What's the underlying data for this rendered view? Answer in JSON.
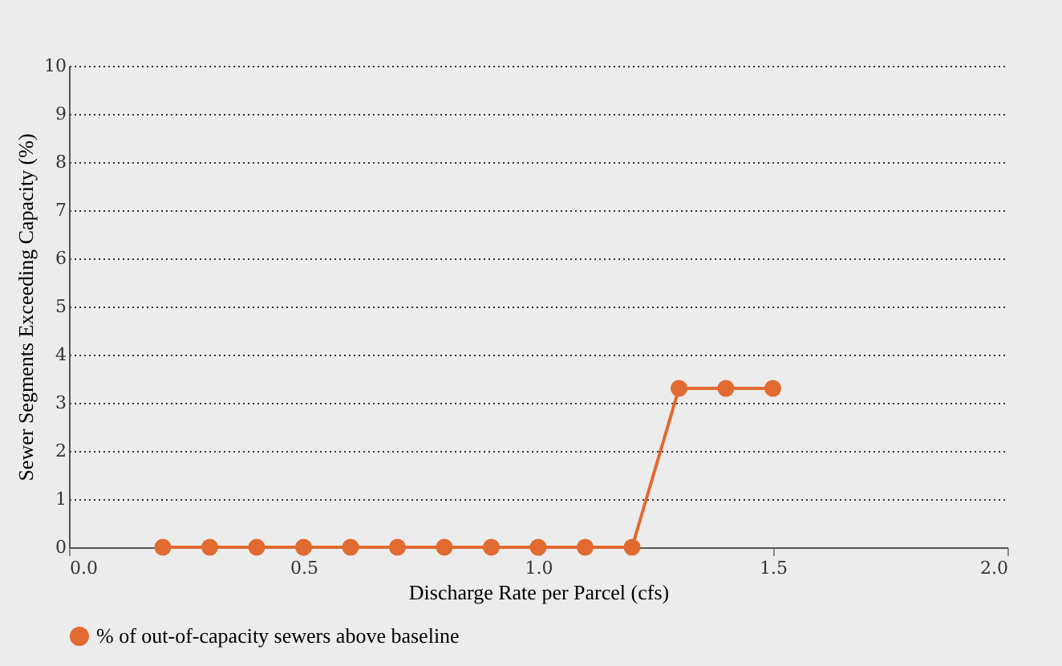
{
  "chart_data": {
    "type": "line",
    "xlabel": "Discharge Rate per Parcel (cfs)",
    "ylabel": "Sewer Segments Exceeding Capacity (%)",
    "x": [
      0.2,
      0.3,
      0.4,
      0.5,
      0.6,
      0.7,
      0.8,
      0.9,
      1.0,
      1.1,
      1.2,
      1.3,
      1.4,
      1.5
    ],
    "series": [
      {
        "name": "% of out-of-capacity sewers  above baseline",
        "color": "#e06a30",
        "values": [
          0,
          0,
          0,
          0,
          0,
          0,
          0,
          0,
          0,
          0,
          0,
          3.3,
          3.3,
          3.3
        ]
      }
    ],
    "xlim": [
      0,
      2
    ],
    "xticks": [
      {
        "value": 0,
        "label": "0.0"
      },
      {
        "value": 0.5,
        "label": "0.5"
      },
      {
        "value": 1,
        "label": "1.0"
      },
      {
        "value": 1.5,
        "label": "1.5"
      },
      {
        "value": 2,
        "label": "2.0"
      }
    ],
    "ylim": [
      0,
      10
    ],
    "yticks": [
      0,
      1,
      2,
      3,
      4,
      5,
      6,
      7,
      8,
      9,
      10
    ],
    "grid": "y",
    "legend": "bottom left",
    "marker": "circle",
    "line_style": "solid"
  }
}
